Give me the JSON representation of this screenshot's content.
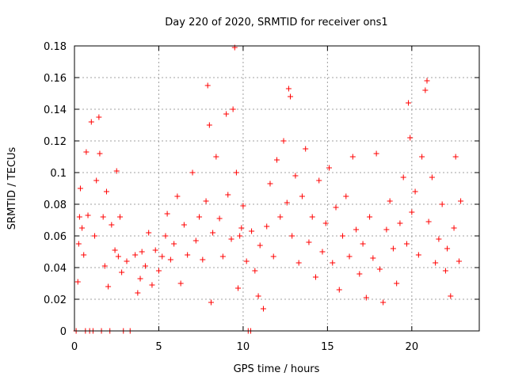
{
  "chart_data": {
    "type": "scatter",
    "title": "Day 220 of 2020, SRMTID for receiver ons1",
    "xlabel": "GPS time / hours",
    "ylabel": "SRMTID / TECUs",
    "xlim": [
      0,
      24
    ],
    "ylim": [
      0,
      0.18
    ],
    "x_ticks": [
      0,
      5,
      10,
      15,
      20
    ],
    "x_tick_labels": [
      "0",
      "5",
      "10",
      "15",
      "20"
    ],
    "y_ticks": [
      0,
      0.02,
      0.04,
      0.06,
      0.08,
      0.1,
      0.12,
      0.14,
      0.16,
      0.18
    ],
    "y_tick_labels": [
      "0",
      "0.02",
      "0.04",
      "0.06",
      "0.08",
      "0.1",
      "0.12",
      "0.14",
      "0.16",
      "0.18"
    ],
    "grid": true,
    "marker": "+",
    "color": "#ff0000",
    "series": [
      {
        "name": "SRMTID",
        "points": [
          [
            0.1,
            0.0
          ],
          [
            0.2,
            0.031
          ],
          [
            0.25,
            0.055
          ],
          [
            0.3,
            0.072
          ],
          [
            0.35,
            0.09
          ],
          [
            0.45,
            0.065
          ],
          [
            0.55,
            0.048
          ],
          [
            0.65,
            0.0
          ],
          [
            0.7,
            0.113
          ],
          [
            0.8,
            0.073
          ],
          [
            0.9,
            0.0
          ],
          [
            1.0,
            0.132
          ],
          [
            1.1,
            0.0
          ],
          [
            1.2,
            0.06
          ],
          [
            1.3,
            0.095
          ],
          [
            1.45,
            0.135
          ],
          [
            1.5,
            0.112
          ],
          [
            1.6,
            0.0
          ],
          [
            1.7,
            0.072
          ],
          [
            1.8,
            0.041
          ],
          [
            1.9,
            0.088
          ],
          [
            2.0,
            0.028
          ],
          [
            2.1,
            0.0
          ],
          [
            2.2,
            0.067
          ],
          [
            2.4,
            0.051
          ],
          [
            2.5,
            0.101
          ],
          [
            2.6,
            0.047
          ],
          [
            2.7,
            0.072
          ],
          [
            2.8,
            0.037
          ],
          [
            2.9,
            0.0
          ],
          [
            3.1,
            0.044
          ],
          [
            3.3,
            0.0
          ],
          [
            3.6,
            0.048
          ],
          [
            3.75,
            0.024
          ],
          [
            3.9,
            0.033
          ],
          [
            4.0,
            0.05
          ],
          [
            4.2,
            0.041
          ],
          [
            4.4,
            0.062
          ],
          [
            4.6,
            0.029
          ],
          [
            4.8,
            0.051
          ],
          [
            5.0,
            0.038
          ],
          [
            5.2,
            0.047
          ],
          [
            5.4,
            0.06
          ],
          [
            5.5,
            0.074
          ],
          [
            5.7,
            0.045
          ],
          [
            5.9,
            0.055
          ],
          [
            6.1,
            0.085
          ],
          [
            6.3,
            0.03
          ],
          [
            6.5,
            0.067
          ],
          [
            6.7,
            0.048
          ],
          [
            7.0,
            0.1
          ],
          [
            7.2,
            0.057
          ],
          [
            7.4,
            0.072
          ],
          [
            7.6,
            0.045
          ],
          [
            7.8,
            0.082
          ],
          [
            7.9,
            0.155
          ],
          [
            8.0,
            0.13
          ],
          [
            8.1,
            0.018
          ],
          [
            8.2,
            0.062
          ],
          [
            8.4,
            0.11
          ],
          [
            8.6,
            0.071
          ],
          [
            8.8,
            0.047
          ],
          [
            9.0,
            0.137
          ],
          [
            9.1,
            0.086
          ],
          [
            9.3,
            0.058
          ],
          [
            9.4,
            0.14
          ],
          [
            9.5,
            0.179
          ],
          [
            9.6,
            0.1
          ],
          [
            9.7,
            0.027
          ],
          [
            9.8,
            0.06
          ],
          [
            9.9,
            0.065
          ],
          [
            10.0,
            0.079
          ],
          [
            10.2,
            0.044
          ],
          [
            10.3,
            0.0
          ],
          [
            10.45,
            0.0
          ],
          [
            10.5,
            0.063
          ],
          [
            10.7,
            0.038
          ],
          [
            10.9,
            0.022
          ],
          [
            11.0,
            0.054
          ],
          [
            11.2,
            0.014
          ],
          [
            11.4,
            0.066
          ],
          [
            11.6,
            0.093
          ],
          [
            11.8,
            0.047
          ],
          [
            12.0,
            0.108
          ],
          [
            12.2,
            0.072
          ],
          [
            12.4,
            0.12
          ],
          [
            12.6,
            0.081
          ],
          [
            12.7,
            0.153
          ],
          [
            12.8,
            0.148
          ],
          [
            12.9,
            0.06
          ],
          [
            13.1,
            0.098
          ],
          [
            13.3,
            0.043
          ],
          [
            13.5,
            0.085
          ],
          [
            13.7,
            0.115
          ],
          [
            13.9,
            0.056
          ],
          [
            14.1,
            0.072
          ],
          [
            14.3,
            0.034
          ],
          [
            14.5,
            0.095
          ],
          [
            14.7,
            0.05
          ],
          [
            14.9,
            0.068
          ],
          [
            15.1,
            0.103
          ],
          [
            15.3,
            0.043
          ],
          [
            15.5,
            0.078
          ],
          [
            15.7,
            0.026
          ],
          [
            15.9,
            0.06
          ],
          [
            16.1,
            0.085
          ],
          [
            16.3,
            0.047
          ],
          [
            16.5,
            0.11
          ],
          [
            16.7,
            0.064
          ],
          [
            16.9,
            0.036
          ],
          [
            17.1,
            0.055
          ],
          [
            17.3,
            0.021
          ],
          [
            17.5,
            0.072
          ],
          [
            17.7,
            0.046
          ],
          [
            17.9,
            0.112
          ],
          [
            18.1,
            0.039
          ],
          [
            18.3,
            0.018
          ],
          [
            18.5,
            0.064
          ],
          [
            18.7,
            0.082
          ],
          [
            18.9,
            0.052
          ],
          [
            19.1,
            0.03
          ],
          [
            19.3,
            0.068
          ],
          [
            19.5,
            0.097
          ],
          [
            19.7,
            0.055
          ],
          [
            19.8,
            0.144
          ],
          [
            19.9,
            0.122
          ],
          [
            20.0,
            0.075
          ],
          [
            20.2,
            0.088
          ],
          [
            20.4,
            0.048
          ],
          [
            20.6,
            0.11
          ],
          [
            20.8,
            0.152
          ],
          [
            20.9,
            0.158
          ],
          [
            21.0,
            0.069
          ],
          [
            21.2,
            0.097
          ],
          [
            21.4,
            0.043
          ],
          [
            21.6,
            0.058
          ],
          [
            21.8,
            0.08
          ],
          [
            22.0,
            0.038
          ],
          [
            22.1,
            0.052
          ],
          [
            22.3,
            0.022
          ],
          [
            22.5,
            0.065
          ],
          [
            22.6,
            0.11
          ],
          [
            22.8,
            0.044
          ],
          [
            22.9,
            0.082
          ]
        ]
      }
    ]
  }
}
